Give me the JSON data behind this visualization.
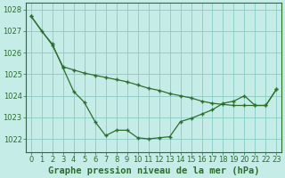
{
  "title": "Graphe pression niveau de la mer (hPa)",
  "background_color": "#c5ece6",
  "grid_color": "#88ccc5",
  "line_color": "#2d6e2d",
  "marker_color": "#2d6e2d",
  "xlim": [
    -0.5,
    23.5
  ],
  "ylim": [
    1021.4,
    1028.3
  ],
  "yticks": [
    1022,
    1023,
    1024,
    1025,
    1026,
    1027,
    1028
  ],
  "xticks": [
    0,
    1,
    2,
    3,
    4,
    5,
    6,
    7,
    8,
    9,
    10,
    11,
    12,
    13,
    14,
    15,
    16,
    17,
    18,
    19,
    20,
    21,
    22,
    23
  ],
  "line1_x": [
    0,
    1,
    2,
    3,
    4,
    5,
    6,
    7,
    8,
    9,
    10,
    11,
    12,
    13,
    14,
    15,
    16,
    17,
    18,
    19,
    20,
    21,
    22,
    23
  ],
  "line1_y": [
    1027.7,
    1027.0,
    1026.4,
    1025.3,
    1024.2,
    1023.7,
    1022.8,
    1022.15,
    1022.4,
    1022.4,
    1022.05,
    1022.0,
    1022.05,
    1022.1,
    1022.8,
    1022.95,
    1023.15,
    1023.35,
    1023.65,
    1023.75,
    1024.0,
    1023.55,
    1023.55,
    1024.3
  ],
  "line2_x": [
    0,
    2,
    3,
    4,
    5,
    6,
    7,
    8,
    9,
    10,
    11,
    12,
    13,
    14,
    15,
    16,
    17,
    18,
    19,
    20,
    21,
    22,
    23
  ],
  "line2_y": [
    1027.7,
    1026.35,
    1025.35,
    1025.2,
    1025.05,
    1024.95,
    1024.85,
    1024.75,
    1024.65,
    1024.5,
    1024.35,
    1024.25,
    1024.1,
    1024.0,
    1023.9,
    1023.75,
    1023.65,
    1023.6,
    1023.55,
    1023.55,
    1023.55,
    1023.55,
    1024.3
  ],
  "title_fontsize": 7.5,
  "tick_fontsize": 6.0
}
